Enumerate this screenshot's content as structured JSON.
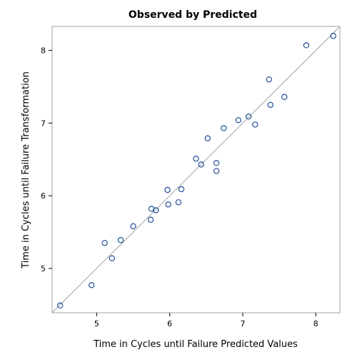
{
  "chart_data": {
    "type": "scatter",
    "title": "Observed by Predicted",
    "xlabel": "Time in Cycles until Failure Predicted Values",
    "ylabel": "Time in Cycles until Failure Transformation",
    "xlim": [
      4.39,
      8.33
    ],
    "ylim": [
      4.39,
      8.33
    ],
    "x_ticks": [
      5,
      6,
      7,
      8
    ],
    "y_ticks": [
      5,
      6,
      7,
      8
    ],
    "reference_line": "y = x",
    "grid": false,
    "colors": {
      "marker": "#1f4e99",
      "reference_line": "#a0a0a0",
      "frame": "#a0a0a0"
    },
    "points": [
      {
        "x": 4.5,
        "y": 4.49
      },
      {
        "x": 4.93,
        "y": 4.77
      },
      {
        "x": 5.11,
        "y": 5.35
      },
      {
        "x": 5.21,
        "y": 5.14
      },
      {
        "x": 5.33,
        "y": 5.39
      },
      {
        "x": 5.5,
        "y": 5.58
      },
      {
        "x": 5.74,
        "y": 5.67
      },
      {
        "x": 5.75,
        "y": 5.82
      },
      {
        "x": 5.81,
        "y": 5.8
      },
      {
        "x": 5.97,
        "y": 6.08
      },
      {
        "x": 5.98,
        "y": 5.88
      },
      {
        "x": 6.12,
        "y": 5.91
      },
      {
        "x": 6.16,
        "y": 6.09
      },
      {
        "x": 6.36,
        "y": 6.51
      },
      {
        "x": 6.43,
        "y": 6.43
      },
      {
        "x": 6.52,
        "y": 6.79
      },
      {
        "x": 6.64,
        "y": 6.45
      },
      {
        "x": 6.64,
        "y": 6.34
      },
      {
        "x": 6.74,
        "y": 6.93
      },
      {
        "x": 6.94,
        "y": 7.04
      },
      {
        "x": 7.08,
        "y": 7.09
      },
      {
        "x": 7.17,
        "y": 6.98
      },
      {
        "x": 7.36,
        "y": 7.6
      },
      {
        "x": 7.38,
        "y": 7.25
      },
      {
        "x": 7.57,
        "y": 7.36
      },
      {
        "x": 7.87,
        "y": 8.07
      },
      {
        "x": 8.24,
        "y": 8.2
      }
    ]
  }
}
